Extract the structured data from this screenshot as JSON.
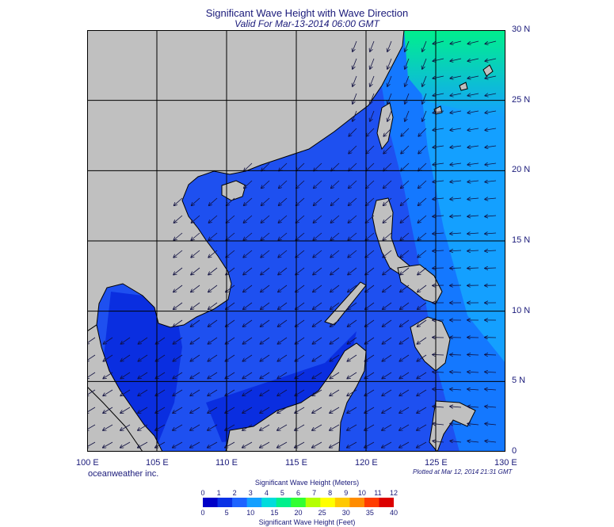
{
  "title": "Significant Wave Height with Wave Direction",
  "subtitle": "Valid For Mar-13-2014 06:00 GMT",
  "credit": "oceanweather inc.",
  "plotted": "Plotted at Mar 12, 2014 21:31 GMT",
  "map": {
    "lon_range": [
      100,
      130
    ],
    "lat_range": [
      0,
      30
    ],
    "lon_labels": [
      "100 E",
      "105 E",
      "110 E",
      "115 E",
      "120 E",
      "125 E",
      "130 E"
    ],
    "lat_labels": [
      "30 N",
      "25 N",
      "20 N",
      "15 N",
      "10 N",
      "5 N",
      "0"
    ],
    "land_color": "#c0c0c0",
    "grid_color": "#000000"
  },
  "colorbar": {
    "meters_title": "Significant Wave Height (Meters)",
    "feet_title": "Significant Wave Height (Feet)",
    "meters_ticks": [
      "0",
      "1",
      "2",
      "3",
      "4",
      "5",
      "6",
      "7",
      "8",
      "9",
      "10",
      "11",
      "12"
    ],
    "feet_ticks": [
      "0",
      "5",
      "10",
      "15",
      "20",
      "25",
      "30",
      "35",
      "40"
    ],
    "colors": [
      "#0000c8",
      "#0a32e6",
      "#1e64ff",
      "#14a0ff",
      "#00dcdc",
      "#00f08c",
      "#32ff32",
      "#b4ff00",
      "#ffff00",
      "#ffc800",
      "#ff8c00",
      "#ff3c00",
      "#dc0000"
    ]
  }
}
